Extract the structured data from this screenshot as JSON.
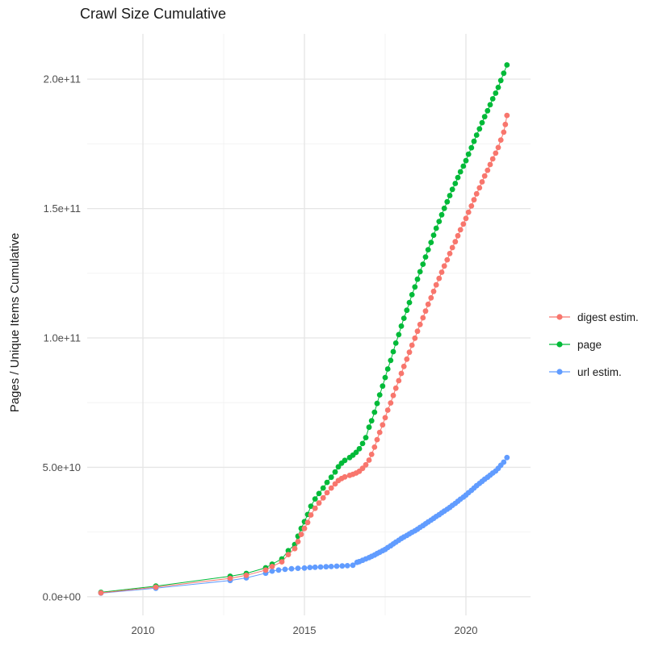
{
  "title": "Crawl Size Cumulative",
  "colors": {
    "digest": "#F8766D",
    "page": "#00BA38",
    "url": "#619CFF",
    "grid_major": "#e5e5e5",
    "grid_minor": "#f2f2f2",
    "tick_text": "#4d4d4d",
    "text": "#1a1a1a"
  },
  "chart_data": {
    "type": "scatter",
    "title": "Crawl Size Cumulative",
    "xlabel": "",
    "ylabel": "Pages / Unique Items Cumulative",
    "value_unit": "1e9 pages (y values below are billions)",
    "grid": true,
    "legend_position": "right",
    "xlim": [
      2008.275,
      2022.0
    ],
    "ylim": [
      -7.2,
      217.5
    ],
    "x_ticks": [
      {
        "value": 2010,
        "label": "2010"
      },
      {
        "value": 2015,
        "label": "2015"
      },
      {
        "value": 2020,
        "label": "2020"
      }
    ],
    "y_ticks": [
      {
        "value": 0,
        "label": "0.0e+00"
      },
      {
        "value": 50,
        "label": "5.0e+10"
      },
      {
        "value": 100,
        "label": "1.0e+11"
      },
      {
        "value": 150,
        "label": "1.5e+11"
      },
      {
        "value": 200,
        "label": "2.0e+11"
      }
    ],
    "x_minor": [
      2012.5,
      2017.5
    ],
    "y_minor": [
      25,
      75,
      125,
      175
    ],
    "series": [
      {
        "name": "digest estim.",
        "color": "#F8766D",
        "points": [
          [
            2008.7,
            1.5
          ],
          [
            2010.4,
            3.7
          ],
          [
            2012.7,
            7.1
          ],
          [
            2013.2,
            8.3
          ],
          [
            2013.8,
            10.3
          ],
          [
            2014.0,
            11.7
          ],
          [
            2014.3,
            13.5
          ],
          [
            2014.5,
            16.3
          ],
          [
            2014.7,
            18.6
          ],
          [
            2014.8,
            21.3
          ],
          [
            2014.9,
            24.1
          ],
          [
            2015.0,
            26.4
          ],
          [
            2015.1,
            28.7
          ],
          [
            2015.2,
            31.6
          ],
          [
            2015.33,
            34.2
          ],
          [
            2015.45,
            36.2
          ],
          [
            2015.58,
            38.2
          ],
          [
            2015.7,
            40.2
          ],
          [
            2015.83,
            42.0
          ],
          [
            2015.95,
            43.6
          ],
          [
            2016.05,
            44.9
          ],
          [
            2016.15,
            45.7
          ],
          [
            2016.25,
            46.3
          ],
          [
            2016.4,
            46.9
          ],
          [
            2016.5,
            47.3
          ],
          [
            2016.6,
            47.8
          ],
          [
            2016.7,
            48.5
          ],
          [
            2016.8,
            49.6
          ],
          [
            2016.9,
            51.0
          ],
          [
            2017.0,
            52.8
          ],
          [
            2017.08,
            55.0
          ],
          [
            2017.17,
            57.8
          ],
          [
            2017.25,
            60.7
          ],
          [
            2017.33,
            63.5
          ],
          [
            2017.42,
            66.4
          ],
          [
            2017.5,
            69.2
          ],
          [
            2017.58,
            72.1
          ],
          [
            2017.67,
            74.9
          ],
          [
            2017.75,
            77.8
          ],
          [
            2017.83,
            80.6
          ],
          [
            2017.92,
            83.5
          ],
          [
            2018.0,
            86.3
          ],
          [
            2018.08,
            89.0
          ],
          [
            2018.17,
            91.8
          ],
          [
            2018.25,
            94.5
          ],
          [
            2018.33,
            97.2
          ],
          [
            2018.42,
            99.9
          ],
          [
            2018.5,
            102.6
          ],
          [
            2018.58,
            105.2
          ],
          [
            2018.67,
            107.8
          ],
          [
            2018.75,
            110.4
          ],
          [
            2018.83,
            113.0
          ],
          [
            2018.92,
            115.5
          ],
          [
            2019.0,
            118.0
          ],
          [
            2019.08,
            120.5
          ],
          [
            2019.17,
            123.0
          ],
          [
            2019.25,
            125.4
          ],
          [
            2019.33,
            127.8
          ],
          [
            2019.42,
            130.2
          ],
          [
            2019.5,
            132.6
          ],
          [
            2019.58,
            134.9
          ],
          [
            2019.67,
            137.2
          ],
          [
            2019.75,
            139.5
          ],
          [
            2019.83,
            141.8
          ],
          [
            2019.92,
            144.0
          ],
          [
            2020.0,
            146.2
          ],
          [
            2020.08,
            148.6
          ],
          [
            2020.17,
            151.0
          ],
          [
            2020.25,
            153.4
          ],
          [
            2020.33,
            155.7
          ],
          [
            2020.42,
            158.0
          ],
          [
            2020.5,
            160.3
          ],
          [
            2020.58,
            162.6
          ],
          [
            2020.67,
            164.8
          ],
          [
            2020.75,
            167.0
          ],
          [
            2020.83,
            169.2
          ],
          [
            2020.92,
            171.4
          ],
          [
            2021.0,
            173.6
          ],
          [
            2021.08,
            176.5
          ],
          [
            2021.17,
            179.5
          ],
          [
            2021.22,
            182.5
          ],
          [
            2021.27,
            186.0
          ]
        ]
      },
      {
        "name": "page",
        "color": "#00BA38",
        "points": [
          [
            2008.7,
            1.7
          ],
          [
            2010.4,
            4.1
          ],
          [
            2012.7,
            7.9
          ],
          [
            2013.2,
            9.0
          ],
          [
            2013.8,
            11.2
          ],
          [
            2014.0,
            12.6
          ],
          [
            2014.3,
            14.6
          ],
          [
            2014.5,
            17.8
          ],
          [
            2014.7,
            20.2
          ],
          [
            2014.8,
            23.4
          ],
          [
            2014.9,
            26.4
          ],
          [
            2015.0,
            29.0
          ],
          [
            2015.1,
            31.8
          ],
          [
            2015.2,
            35.0
          ],
          [
            2015.33,
            37.8
          ],
          [
            2015.45,
            39.9
          ],
          [
            2015.58,
            42.0
          ],
          [
            2015.7,
            44.2
          ],
          [
            2015.83,
            46.2
          ],
          [
            2015.95,
            48.2
          ],
          [
            2016.05,
            50.2
          ],
          [
            2016.15,
            51.6
          ],
          [
            2016.25,
            52.7
          ],
          [
            2016.4,
            53.8
          ],
          [
            2016.5,
            54.7
          ],
          [
            2016.6,
            55.8
          ],
          [
            2016.7,
            57.2
          ],
          [
            2016.8,
            59.2
          ],
          [
            2016.9,
            61.5
          ],
          [
            2017.0,
            65.5
          ],
          [
            2017.08,
            68.0
          ],
          [
            2017.17,
            71.3
          ],
          [
            2017.25,
            74.7
          ],
          [
            2017.33,
            78.0
          ],
          [
            2017.42,
            81.4
          ],
          [
            2017.5,
            84.7
          ],
          [
            2017.58,
            88.0
          ],
          [
            2017.67,
            91.3
          ],
          [
            2017.75,
            94.7
          ],
          [
            2017.83,
            98.0
          ],
          [
            2017.92,
            101.3
          ],
          [
            2018.0,
            104.6
          ],
          [
            2018.08,
            107.6
          ],
          [
            2018.17,
            110.7
          ],
          [
            2018.25,
            113.7
          ],
          [
            2018.33,
            116.7
          ],
          [
            2018.42,
            119.7
          ],
          [
            2018.5,
            122.7
          ],
          [
            2018.58,
            125.6
          ],
          [
            2018.67,
            128.5
          ],
          [
            2018.75,
            131.3
          ],
          [
            2018.83,
            134.1
          ],
          [
            2018.92,
            136.9
          ],
          [
            2019.0,
            139.7
          ],
          [
            2019.08,
            142.4
          ],
          [
            2019.17,
            145.0
          ],
          [
            2019.25,
            147.6
          ],
          [
            2019.33,
            150.1
          ],
          [
            2019.42,
            152.6
          ],
          [
            2019.5,
            155.0
          ],
          [
            2019.58,
            157.4
          ],
          [
            2019.67,
            159.7
          ],
          [
            2019.75,
            162.0
          ],
          [
            2019.83,
            164.2
          ],
          [
            2019.92,
            166.4
          ],
          [
            2020.0,
            168.5
          ],
          [
            2020.08,
            171.0
          ],
          [
            2020.17,
            173.5
          ],
          [
            2020.25,
            176.0
          ],
          [
            2020.33,
            178.4
          ],
          [
            2020.42,
            180.8
          ],
          [
            2020.5,
            183.2
          ],
          [
            2020.58,
            185.5
          ],
          [
            2020.67,
            187.8
          ],
          [
            2020.75,
            190.1
          ],
          [
            2020.83,
            192.4
          ],
          [
            2020.92,
            194.6
          ],
          [
            2021.0,
            196.8
          ],
          [
            2021.08,
            199.5
          ],
          [
            2021.17,
            202.3
          ],
          [
            2021.27,
            205.5
          ]
        ]
      },
      {
        "name": "url estim.",
        "color": "#619CFF",
        "points": [
          [
            2008.7,
            1.4
          ],
          [
            2010.4,
            3.3
          ],
          [
            2012.7,
            6.3
          ],
          [
            2013.2,
            7.3
          ],
          [
            2013.8,
            9.1
          ],
          [
            2014.0,
            9.9
          ],
          [
            2014.2,
            10.3
          ],
          [
            2014.4,
            10.6
          ],
          [
            2014.6,
            10.8
          ],
          [
            2014.8,
            11.0
          ],
          [
            2015.0,
            11.1
          ],
          [
            2015.17,
            11.3
          ],
          [
            2015.33,
            11.4
          ],
          [
            2015.5,
            11.5
          ],
          [
            2015.67,
            11.6
          ],
          [
            2015.83,
            11.7
          ],
          [
            2016.0,
            11.8
          ],
          [
            2016.17,
            11.9
          ],
          [
            2016.33,
            12.0
          ],
          [
            2016.5,
            12.2
          ],
          [
            2016.63,
            13.3
          ],
          [
            2016.7,
            13.6
          ],
          [
            2016.8,
            14.1
          ],
          [
            2016.9,
            14.6
          ],
          [
            2017.0,
            15.1
          ],
          [
            2017.08,
            15.6
          ],
          [
            2017.17,
            16.1
          ],
          [
            2017.25,
            16.7
          ],
          [
            2017.33,
            17.2
          ],
          [
            2017.42,
            17.8
          ],
          [
            2017.5,
            18.3
          ],
          [
            2017.58,
            19.0
          ],
          [
            2017.67,
            19.7
          ],
          [
            2017.75,
            20.4
          ],
          [
            2017.83,
            21.1
          ],
          [
            2017.92,
            21.8
          ],
          [
            2018.0,
            22.5
          ],
          [
            2018.08,
            23.1
          ],
          [
            2018.17,
            23.7
          ],
          [
            2018.25,
            24.3
          ],
          [
            2018.33,
            24.9
          ],
          [
            2018.42,
            25.5
          ],
          [
            2018.5,
            26.1
          ],
          [
            2018.58,
            26.8
          ],
          [
            2018.67,
            27.5
          ],
          [
            2018.75,
            28.2
          ],
          [
            2018.83,
            28.9
          ],
          [
            2018.92,
            29.6
          ],
          [
            2019.0,
            30.3
          ],
          [
            2019.08,
            31.0
          ],
          [
            2019.17,
            31.7
          ],
          [
            2019.25,
            32.4
          ],
          [
            2019.33,
            33.1
          ],
          [
            2019.42,
            33.8
          ],
          [
            2019.5,
            34.5
          ],
          [
            2019.58,
            35.3
          ],
          [
            2019.67,
            36.1
          ],
          [
            2019.75,
            36.9
          ],
          [
            2019.83,
            37.7
          ],
          [
            2019.92,
            38.5
          ],
          [
            2020.0,
            39.3
          ],
          [
            2020.08,
            40.2
          ],
          [
            2020.17,
            41.1
          ],
          [
            2020.25,
            42.0
          ],
          [
            2020.33,
            42.9
          ],
          [
            2020.42,
            43.8
          ],
          [
            2020.5,
            44.6
          ],
          [
            2020.58,
            45.4
          ],
          [
            2020.67,
            46.2
          ],
          [
            2020.75,
            47.0
          ],
          [
            2020.83,
            47.8
          ],
          [
            2020.92,
            48.6
          ],
          [
            2021.0,
            49.6
          ],
          [
            2021.08,
            50.8
          ],
          [
            2021.17,
            52.0
          ],
          [
            2021.27,
            53.8
          ]
        ]
      }
    ]
  }
}
